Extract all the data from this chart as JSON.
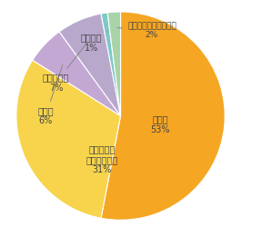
{
  "labels": [
    "保育園",
    "幼保連携型\n認定こども園",
    "幼稚園",
    "福祉施設等",
    "一般企業",
    "進学（専修学校含む）"
  ],
  "values": [
    53,
    31,
    6,
    7,
    1,
    2
  ],
  "colors": [
    "#F5A623",
    "#F7D44C",
    "#C4A8D4",
    "#B8A8CC",
    "#7EC8C8",
    "#A8D4A8"
  ],
  "pct_labels": [
    "53%",
    "31%",
    "6%",
    "7%",
    "1%",
    "2%"
  ],
  "startangle": 90,
  "figsize": [
    2.88,
    2.61
  ],
  "dpi": 100,
  "label_fontsize": 7.0,
  "font_color": "#444444",
  "edge_color": "#ffffff",
  "bg_color": "#ffffff"
}
